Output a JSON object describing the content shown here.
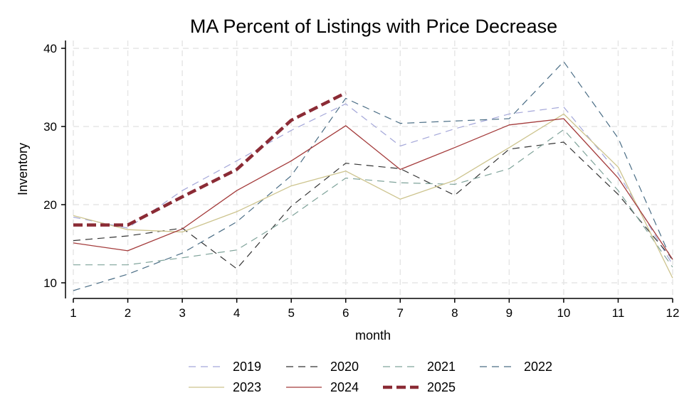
{
  "chart_data": {
    "type": "line",
    "title": "MA  Percent of Listings with Price Decrease",
    "xlabel": "month",
    "ylabel": "Inventory",
    "x": [
      1,
      2,
      3,
      4,
      5,
      6,
      7,
      8,
      9,
      10,
      11,
      12
    ],
    "xlim": [
      1,
      12
    ],
    "ylim": [
      8,
      41
    ],
    "yticks": [
      10,
      20,
      30,
      40
    ],
    "grid": true,
    "legend_position": "bottom",
    "series": [
      {
        "name": "2019",
        "color": "#a4a7d9",
        "dash": "dash",
        "values": [
          18.4,
          17.0,
          21.8,
          25.6,
          29.5,
          32.9,
          27.5,
          29.7,
          31.6,
          32.5,
          24.0,
          12.3
        ]
      },
      {
        "name": "2020",
        "color": "#333333",
        "dash": "dash",
        "values": [
          15.4,
          16.0,
          17.0,
          11.8,
          19.8,
          25.3,
          24.6,
          21.2,
          27.1,
          28.0,
          21.3,
          13.0
        ]
      },
      {
        "name": "2021",
        "color": "#7fa39a",
        "dash": "dash",
        "values": [
          12.3,
          12.3,
          13.2,
          14.2,
          18.5,
          23.4,
          22.8,
          22.6,
          24.6,
          29.6,
          21.8,
          12.0
        ]
      },
      {
        "name": "2022",
        "color": "#4a6d85",
        "dash": "dash",
        "values": [
          9.0,
          11.1,
          13.8,
          17.8,
          23.7,
          33.6,
          30.4,
          30.7,
          31.0,
          38.3,
          28.5,
          12.6
        ]
      },
      {
        "name": "2023",
        "color": "#cdc48e",
        "dash": "solid",
        "values": [
          18.6,
          16.8,
          16.5,
          19.1,
          22.4,
          24.3,
          20.7,
          23.1,
          27.3,
          31.6,
          24.8,
          10.6
        ]
      },
      {
        "name": "2024",
        "color": "#a43b3b",
        "dash": "solid",
        "values": [
          15.1,
          14.1,
          16.9,
          21.8,
          25.6,
          30.1,
          24.5,
          27.3,
          30.2,
          31.0,
          23.4,
          13.0
        ]
      },
      {
        "name": "2025",
        "color": "#8b2b35",
        "dash": "thick-dash",
        "values": [
          17.4,
          17.4,
          21.0,
          24.5,
          30.8,
          34.3,
          null,
          null,
          null,
          null,
          null,
          null
        ]
      }
    ]
  }
}
